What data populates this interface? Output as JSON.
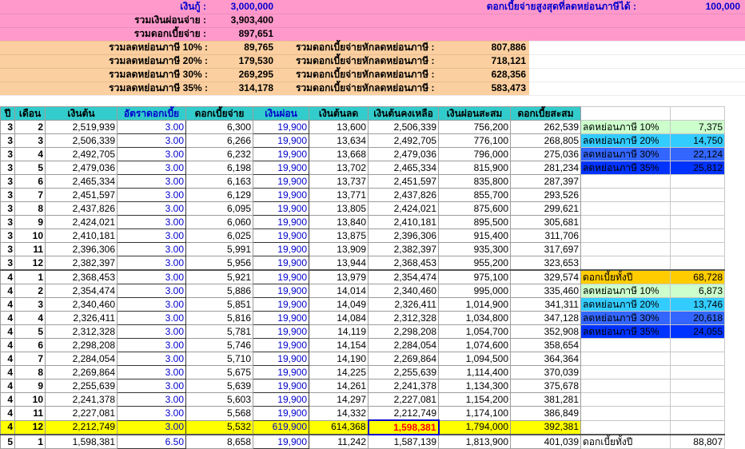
{
  "summary": {
    "loan_label": "เงินกู้ :",
    "loan_value": "3,000,000",
    "total_paid_label": "รวมเงินผ่อนจ่าย :",
    "total_paid_value": "3,903,400",
    "total_interest_label": "รวมดอกเบี้ยจ่าย :",
    "total_interest_value": "897,651",
    "max_deduct_label": "ดอกเบี้ยจ่ายสูงสุดที่ลดหย่อนภาษีได้ :",
    "max_deduct_value": "100,000",
    "tax_rows": [
      {
        "label": "รวมลดหย่อนภาษี 10% :",
        "value": "89,765",
        "net_label": "รวมดอกเบี้ยจ่ายหักลดหย่อนภาษี :",
        "net_value": "807,886"
      },
      {
        "label": "รวมลดหย่อนภาษี 20% :",
        "value": "179,530",
        "net_label": "รวมดอกเบี้ยจ่ายหักลดหย่อนภาษี :",
        "net_value": "718,121"
      },
      {
        "label": "รวมลดหย่อนภาษี 30% :",
        "value": "269,295",
        "net_label": "รวมดอกเบี้ยจ่ายหักลดหย่อนภาษี :",
        "net_value": "628,356"
      },
      {
        "label": "รวมลดหย่อนภาษี 35% :",
        "value": "314,178",
        "net_label": "รวมดอกเบี้ยจ่ายหักลดหย่อนภาษี :",
        "net_value": "583,473"
      }
    ]
  },
  "table": {
    "headers": [
      "ปี",
      "เดือน",
      "เงินต้น",
      "อัตราดอกเบี้ย",
      "ดอกเบี้ยจ่าย",
      "เงินผ่อน",
      "เงินต้นลด",
      "เงินต้นคงเหลือ",
      "เงินผ่อนสะสม",
      "ดอกเบี้ยสะสม"
    ],
    "rows": [
      [
        "3",
        "2",
        "2,519,939",
        "3.00",
        "6,300",
        "19,900",
        "13,600",
        "2,506,339",
        "756,200",
        "262,539"
      ],
      [
        "3",
        "3",
        "2,506,339",
        "3.00",
        "6,266",
        "19,900",
        "13,634",
        "2,492,705",
        "776,100",
        "268,805"
      ],
      [
        "3",
        "4",
        "2,492,705",
        "3.00",
        "6,232",
        "19,900",
        "13,668",
        "2,479,036",
        "796,000",
        "275,036"
      ],
      [
        "3",
        "5",
        "2,479,036",
        "3.00",
        "6,198",
        "19,900",
        "13,702",
        "2,465,334",
        "815,900",
        "281,234"
      ],
      [
        "3",
        "6",
        "2,465,334",
        "3.00",
        "6,163",
        "19,900",
        "13,737",
        "2,451,597",
        "835,800",
        "287,397"
      ],
      [
        "3",
        "7",
        "2,451,597",
        "3.00",
        "6,129",
        "19,900",
        "13,771",
        "2,437,826",
        "855,700",
        "293,526"
      ],
      [
        "3",
        "8",
        "2,437,826",
        "3.00",
        "6,095",
        "19,900",
        "13,805",
        "2,424,021",
        "875,600",
        "299,621"
      ],
      [
        "3",
        "9",
        "2,424,021",
        "3.00",
        "6,060",
        "19,900",
        "13,840",
        "2,410,181",
        "895,500",
        "305,681"
      ],
      [
        "3",
        "10",
        "2,410,181",
        "3.00",
        "6,025",
        "19,900",
        "13,875",
        "2,396,306",
        "915,400",
        "311,706"
      ],
      [
        "3",
        "11",
        "2,396,306",
        "3.00",
        "5,991",
        "19,900",
        "13,909",
        "2,382,397",
        "935,300",
        "317,697"
      ],
      [
        "3",
        "12",
        "2,382,397",
        "3.00",
        "5,956",
        "19,900",
        "13,944",
        "2,368,453",
        "955,200",
        "323,653"
      ],
      [
        "4",
        "1",
        "2,368,453",
        "3.00",
        "5,921",
        "19,900",
        "13,979",
        "2,354,474",
        "975,100",
        "329,574"
      ],
      [
        "4",
        "2",
        "2,354,474",
        "3.00",
        "5,886",
        "19,900",
        "14,014",
        "2,340,460",
        "995,000",
        "335,460"
      ],
      [
        "4",
        "3",
        "2,340,460",
        "3.00",
        "5,851",
        "19,900",
        "14,049",
        "2,326,411",
        "1,014,900",
        "341,311"
      ],
      [
        "4",
        "4",
        "2,326,411",
        "3.00",
        "5,816",
        "19,900",
        "14,084",
        "2,312,328",
        "1,034,800",
        "347,128"
      ],
      [
        "4",
        "5",
        "2,312,328",
        "3.00",
        "5,781",
        "19,900",
        "14,119",
        "2,298,208",
        "1,054,700",
        "352,908"
      ],
      [
        "4",
        "6",
        "2,298,208",
        "3.00",
        "5,746",
        "19,900",
        "14,154",
        "2,284,054",
        "1,074,600",
        "358,654"
      ],
      [
        "4",
        "7",
        "2,284,054",
        "3.00",
        "5,710",
        "19,900",
        "14,190",
        "2,269,864",
        "1,094,500",
        "364,364"
      ],
      [
        "4",
        "8",
        "2,269,864",
        "3.00",
        "5,675",
        "19,900",
        "14,225",
        "2,255,639",
        "1,114,400",
        "370,039"
      ],
      [
        "4",
        "9",
        "2,255,639",
        "3.00",
        "5,639",
        "19,900",
        "14,261",
        "2,241,378",
        "1,134,300",
        "375,678"
      ],
      [
        "4",
        "10",
        "2,241,378",
        "3.00",
        "5,603",
        "19,900",
        "14,297",
        "2,227,081",
        "1,154,200",
        "381,281"
      ],
      [
        "4",
        "11",
        "2,227,081",
        "3.00",
        "5,568",
        "19,900",
        "14,332",
        "2,212,749",
        "1,174,100",
        "386,849"
      ],
      [
        "4",
        "12",
        "2,212,749",
        "3.00",
        "5,532",
        "619,900",
        "614,368",
        "1,598,381",
        "1,794,000",
        "392,381"
      ],
      [
        "5",
        "1",
        "1,598,381",
        "6.50",
        "8,658",
        "19,900",
        "11,242",
        "1,587,139",
        "1,813,900",
        "401,039"
      ]
    ],
    "side_year3": [
      {
        "label": "ลดหย่อนภาษี 10%",
        "value": "7,375"
      },
      {
        "label": "ลดหย่อนภาษี 20%",
        "value": "14,750"
      },
      {
        "label": "ลดหย่อนภาษี 30%",
        "value": "22,124"
      },
      {
        "label": "ลดหย่อนภาษี 35%",
        "value": "25,812"
      }
    ],
    "side_year4_total": {
      "label": "ดอกเบี้ยทั้งปี",
      "value": "68,728"
    },
    "side_year4": [
      {
        "label": "ลดหย่อนภาษี 10%",
        "value": "6,873"
      },
      {
        "label": "ลดหย่อนภาษี 20%",
        "value": "13,746"
      },
      {
        "label": "ลดหย่อนภาษี 30%",
        "value": "20,618"
      },
      {
        "label": "ลดหย่อนภาษี 35%",
        "value": "24,055"
      }
    ],
    "side_year5_total": {
      "label": "ดอกเบี้ยทั้งปี",
      "value": "88,807"
    }
  }
}
